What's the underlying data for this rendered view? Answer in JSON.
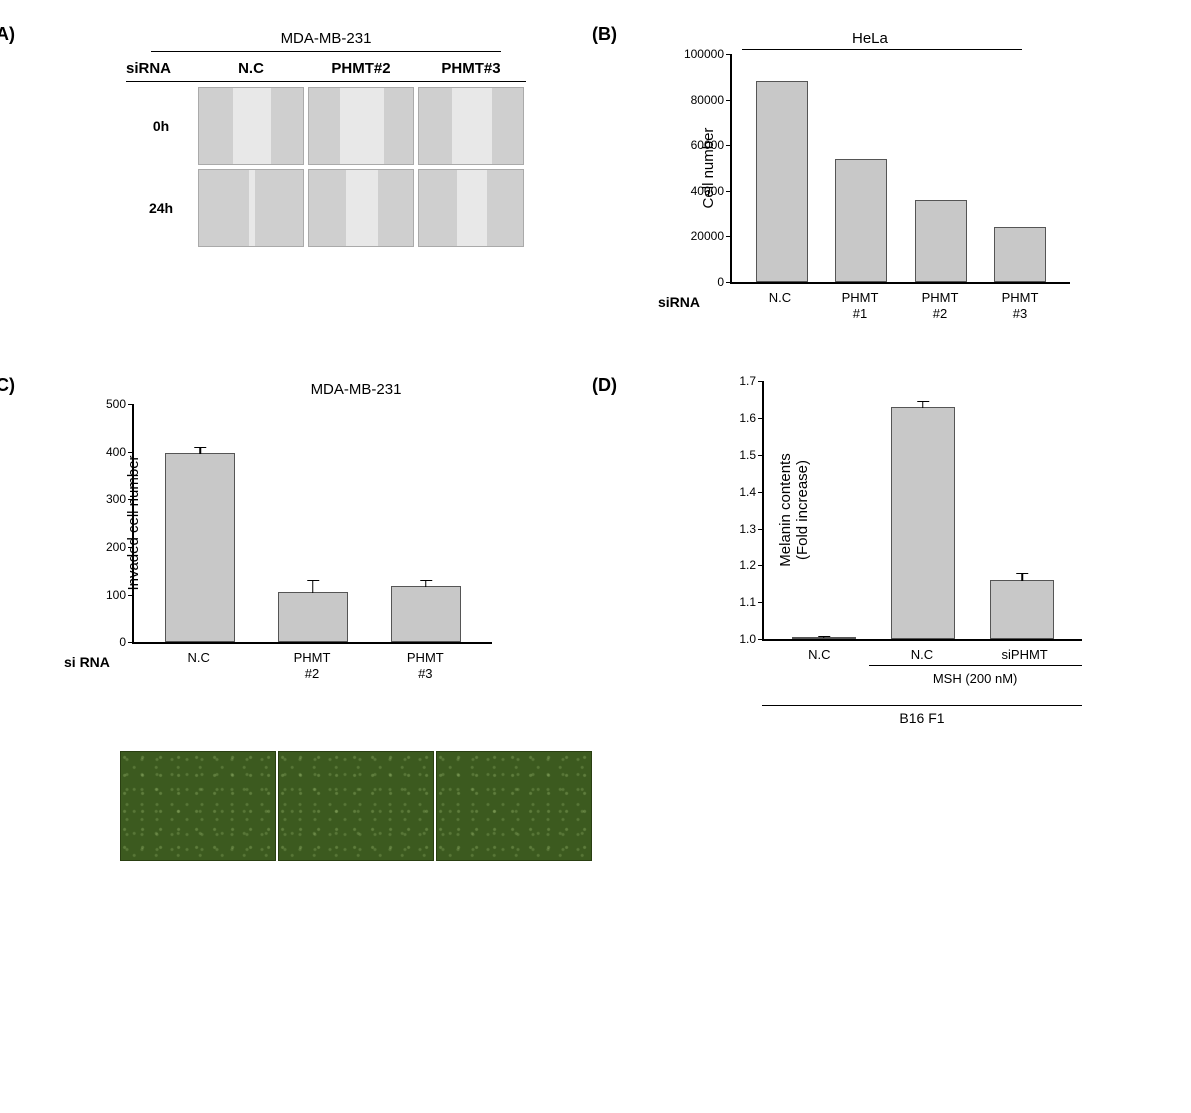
{
  "panelA": {
    "label": "(A)",
    "cellLine": "MDA-MB-231",
    "rowHeader": "siRNA",
    "columns": [
      "N.C",
      "PHMT#2",
      "PHMT#3"
    ],
    "rows": [
      "0h",
      "24h"
    ],
    "gapWidths": {
      "0h": [
        38,
        44,
        40
      ],
      "24h": [
        6,
        32,
        30
      ]
    },
    "img_bg": "#cfcfcf",
    "gap_bg": "#e8e8e8"
  },
  "panelB": {
    "label": "(B)",
    "cellLine": "HeLa",
    "ylabel": "Cell number",
    "ylim": [
      0,
      100000
    ],
    "ytick_step": 20000,
    "yticks": [
      "0",
      "20000",
      "40000",
      "60000",
      "80000",
      "100000"
    ],
    "xlabel": "siRNA",
    "categories": [
      "N.C",
      "PHMT\n#1",
      "PHMT\n#2",
      "PHMT\n#3"
    ],
    "values": [
      88000,
      54000,
      36000,
      24000
    ],
    "bar_color": "#c8c8c8",
    "bar_border": "#555555",
    "type": "bar"
  },
  "panelC": {
    "label": "(C)",
    "cellLine": "MDA-MB-231",
    "ylabel": "Invaded cell number",
    "ylim": [
      0,
      500
    ],
    "ytick_step": 100,
    "yticks": [
      "0",
      "100",
      "200",
      "300",
      "400",
      "500"
    ],
    "xlabel": "si RNA",
    "categories": [
      "N.C",
      "PHMT\n#2",
      "PHMT\n#3"
    ],
    "values": [
      398,
      105,
      118
    ],
    "errors": [
      15,
      28,
      14
    ],
    "bar_color": "#c8c8c8",
    "image_bg": "#3c5a1f",
    "type": "bar"
  },
  "panelD": {
    "label": "(D)",
    "ylabel_line1": "Melanin contents",
    "ylabel_line2": "(Fold increase)",
    "ylim": [
      1.0,
      1.7
    ],
    "ytick_step": 0.1,
    "yticks": [
      "1.0",
      "1.1",
      "1.2",
      "1.3",
      "1.4",
      "1.5",
      "1.6",
      "1.7"
    ],
    "categories": [
      "N.C",
      "N.C",
      "siPHMT"
    ],
    "values": [
      1.0,
      1.63,
      1.16
    ],
    "errors": [
      0.005,
      0.018,
      0.022
    ],
    "treatment_label": "MSH (200 nM)",
    "treatment_span": [
      1,
      2
    ],
    "cellLine": "B16 F1",
    "bar_color": "#c8c8c8",
    "type": "bar"
  },
  "colors": {
    "axis": "#000000",
    "background": "#ffffff"
  }
}
